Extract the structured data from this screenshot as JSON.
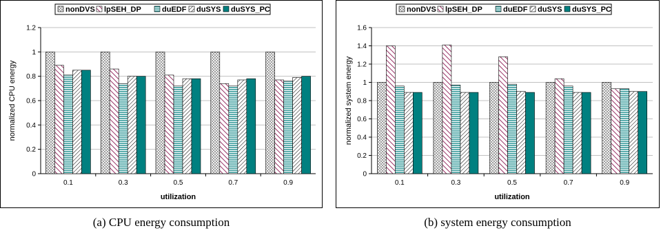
{
  "legend": [
    "nonDVS",
    "lpSEH_DP",
    "duEDF",
    "duSYS",
    "duSYS_PC"
  ],
  "chart_data": [
    {
      "type": "bar",
      "caption": "(a) CPU energy consumption",
      "xlabel": "utilization",
      "ylabel": "normalized CPU energy",
      "categories": [
        "0.1",
        "0.3",
        "0.5",
        "0.7",
        "0.9"
      ],
      "ylim": [
        0,
        1.2
      ],
      "yticks": [
        "0",
        "0.2",
        "0.4",
        "0.6",
        "0.8",
        "1",
        "1.2"
      ],
      "grid": true,
      "legend_position": "top",
      "series": [
        {
          "name": "nonDVS",
          "values": [
            1.0,
            1.0,
            1.0,
            1.0,
            1.0
          ]
        },
        {
          "name": "lpSEH_DP",
          "values": [
            0.89,
            0.86,
            0.81,
            0.74,
            0.77
          ]
        },
        {
          "name": "duEDF",
          "values": [
            0.81,
            0.74,
            0.72,
            0.72,
            0.76
          ]
        },
        {
          "name": "duSYS",
          "values": [
            0.85,
            0.8,
            0.78,
            0.77,
            0.79
          ]
        },
        {
          "name": "duSYS_PC",
          "values": [
            0.85,
            0.8,
            0.78,
            0.78,
            0.8
          ]
        }
      ]
    },
    {
      "type": "bar",
      "caption": "(b) system energy consumption",
      "xlabel": "utilization",
      "ylabel": "normalized system energy",
      "categories": [
        "0.1",
        "0.3",
        "0.5",
        "0.7",
        "0.9"
      ],
      "ylim": [
        0,
        1.6
      ],
      "yticks": [
        "0",
        "0.2",
        "0.4",
        "0.6",
        "0.8",
        "1",
        "1.2",
        "1.4",
        "1.6"
      ],
      "grid": true,
      "legend_position": "top",
      "series": [
        {
          "name": "nonDVS",
          "values": [
            1.0,
            1.0,
            1.0,
            1.0,
            1.0
          ]
        },
        {
          "name": "lpSEH_DP",
          "values": [
            1.4,
            1.41,
            1.28,
            1.04,
            0.93
          ]
        },
        {
          "name": "duEDF",
          "values": [
            0.96,
            0.97,
            0.98,
            0.96,
            0.93
          ]
        },
        {
          "name": "duSYS",
          "values": [
            0.89,
            0.89,
            0.9,
            0.89,
            0.9
          ]
        },
        {
          "name": "duSYS_PC",
          "values": [
            0.89,
            0.89,
            0.89,
            0.89,
            0.9
          ]
        }
      ]
    }
  ],
  "styles": {
    "gridline_color": "#c0c0c0",
    "bar_stroke": "#000000",
    "purple": "#993366",
    "teal": "#008080",
    "frame_color": "#000000"
  }
}
